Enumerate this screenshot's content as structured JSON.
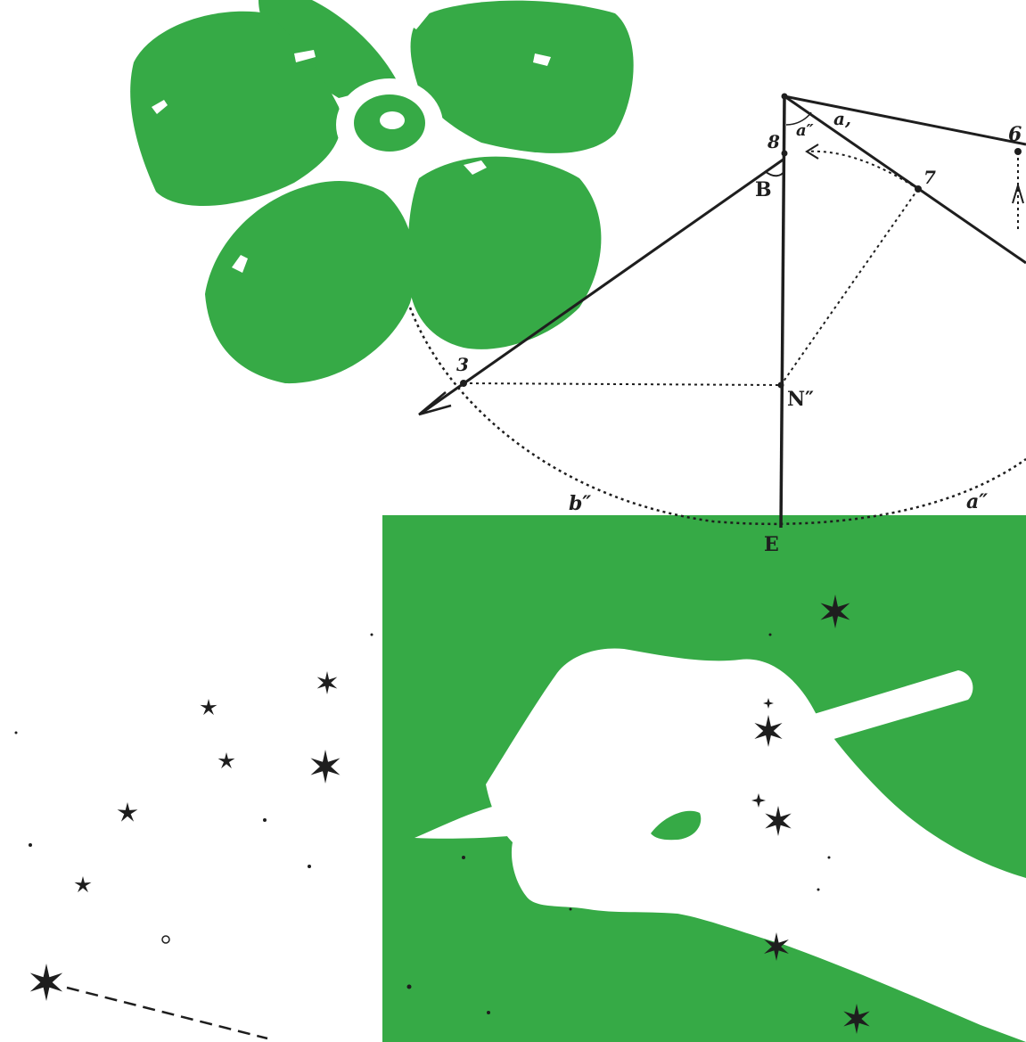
{
  "colors": {
    "background": "#ffffff",
    "green": "#36aa46",
    "ink": "#1e1e1e"
  },
  "icons": [
    "flower-illustration",
    "hand-holding-pencil",
    "star-icon",
    "geometric-diagram"
  ],
  "diagram": {
    "labels": {
      "point_8": "8",
      "point_6": "6",
      "point_7": "7",
      "point_3": "3",
      "angle_B": "B",
      "point_N": "N″",
      "point_E": "E",
      "arc_a1": "a,",
      "arc_a2": "a″",
      "arc_b2": "b″",
      "arc_a2_right": "a″"
    }
  }
}
